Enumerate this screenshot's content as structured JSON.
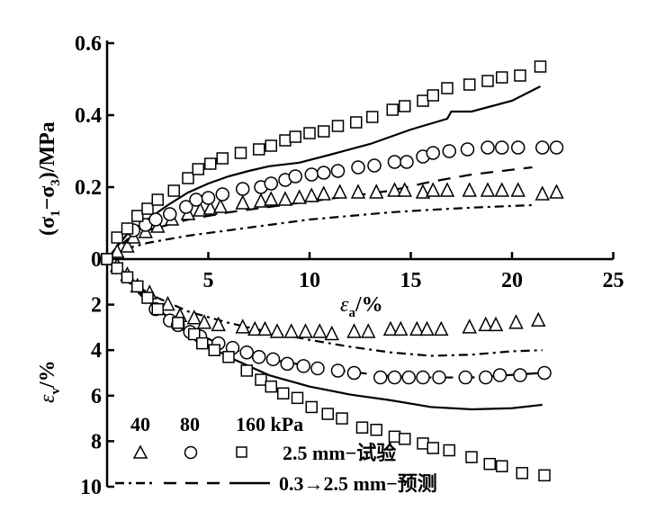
{
  "chart_data": {
    "type": "scatter",
    "x_axis": {
      "label_main": "ε",
      "label_sub": "a",
      "label_unit": "/%",
      "range": [
        0,
        25
      ],
      "ticks": [
        5,
        10,
        15,
        20,
        25
      ],
      "tick_labels": [
        "5",
        "10",
        "15",
        "20",
        "25"
      ]
    },
    "upper_y_axis": {
      "label": "(σ1−σ3)/MPa",
      "label_parts": [
        "(σ",
        "1",
        "−σ",
        "3",
        ")/MPa"
      ],
      "range": [
        0,
        0.6
      ],
      "ticks": [
        0,
        0.2,
        0.4,
        0.6
      ],
      "tick_labels": [
        "0",
        "0.2",
        "0.4",
        "0.6"
      ]
    },
    "lower_y_axis": {
      "label_main": "ε",
      "label_sub": "v",
      "label_unit": "/%",
      "range": [
        0,
        10
      ],
      "inverted": true,
      "ticks": [
        2,
        4,
        6,
        8,
        10
      ],
      "tick_labels": [
        "2",
        "4",
        "6",
        "8",
        "10"
      ]
    },
    "legend": {
      "pressures": [
        "40",
        "80",
        "160 kPa"
      ],
      "test_label": "2.5 mm−试验",
      "pred_label": "0.3→2.5 mm−预测",
      "placement": "bottom-left"
    },
    "upper_series": [
      {
        "name": "40 kPa test",
        "marker": "triangle",
        "points": [
          [
            0.5,
            0.02
          ],
          [
            1,
            0.035
          ],
          [
            1.3,
            0.06
          ],
          [
            1.9,
            0.075
          ],
          [
            2.5,
            0.09
          ],
          [
            3.2,
            0.11
          ],
          [
            4,
            0.125
          ],
          [
            4.6,
            0.135
          ],
          [
            5.1,
            0.14
          ],
          [
            5.6,
            0.145
          ],
          [
            6.7,
            0.155
          ],
          [
            7.6,
            0.16
          ],
          [
            8.1,
            0.165
          ],
          [
            8.8,
            0.165
          ],
          [
            9.5,
            0.17
          ],
          [
            10.1,
            0.175
          ],
          [
            10.7,
            0.18
          ],
          [
            11.5,
            0.185
          ],
          [
            12.4,
            0.185
          ],
          [
            13.3,
            0.185
          ],
          [
            14.2,
            0.19
          ],
          [
            14.7,
            0.19
          ],
          [
            15.6,
            0.185
          ],
          [
            16.1,
            0.19
          ],
          [
            16.8,
            0.19
          ],
          [
            17.9,
            0.19
          ],
          [
            18.8,
            0.19
          ],
          [
            19.5,
            0.19
          ],
          [
            20.3,
            0.19
          ],
          [
            21.5,
            0.18
          ],
          [
            22.2,
            0.185
          ]
        ]
      },
      {
        "name": "80 kPa test",
        "marker": "circle",
        "points": [
          [
            1.3,
            0.08
          ],
          [
            1.9,
            0.095
          ],
          [
            2.4,
            0.11
          ],
          [
            3.1,
            0.125
          ],
          [
            3.9,
            0.145
          ],
          [
            4.4,
            0.165
          ],
          [
            5,
            0.17
          ],
          [
            5.7,
            0.18
          ],
          [
            6.7,
            0.195
          ],
          [
            7.6,
            0.2
          ],
          [
            8.1,
            0.21
          ],
          [
            8.8,
            0.22
          ],
          [
            9.3,
            0.23
          ],
          [
            10.1,
            0.235
          ],
          [
            10.7,
            0.24
          ],
          [
            11.4,
            0.245
          ],
          [
            12.4,
            0.255
          ],
          [
            13.2,
            0.26
          ],
          [
            14.2,
            0.27
          ],
          [
            14.8,
            0.27
          ],
          [
            15.6,
            0.285
          ],
          [
            16.1,
            0.295
          ],
          [
            16.9,
            0.3
          ],
          [
            17.8,
            0.305
          ],
          [
            18.8,
            0.31
          ],
          [
            19.5,
            0.31
          ],
          [
            20.3,
            0.31
          ],
          [
            21.5,
            0.31
          ],
          [
            22.2,
            0.31
          ]
        ]
      },
      {
        "name": "160 kPa test",
        "marker": "square",
        "points": [
          [
            0,
            0
          ],
          [
            0.5,
            0.06
          ],
          [
            1,
            0.085
          ],
          [
            1.5,
            0.12
          ],
          [
            2,
            0.14
          ],
          [
            2.5,
            0.165
          ],
          [
            3.3,
            0.19
          ],
          [
            4,
            0.225
          ],
          [
            4.5,
            0.25
          ],
          [
            5.1,
            0.265
          ],
          [
            5.7,
            0.28
          ],
          [
            6.6,
            0.295
          ],
          [
            7.5,
            0.305
          ],
          [
            8.1,
            0.315
          ],
          [
            8.8,
            0.33
          ],
          [
            9.3,
            0.34
          ],
          [
            10,
            0.35
          ],
          [
            10.7,
            0.355
          ],
          [
            11.4,
            0.37
          ],
          [
            12.3,
            0.38
          ],
          [
            13.1,
            0.395
          ],
          [
            14.1,
            0.415
          ],
          [
            14.7,
            0.425
          ],
          [
            15.6,
            0.44
          ],
          [
            16.1,
            0.455
          ],
          [
            16.8,
            0.475
          ],
          [
            17.9,
            0.485
          ],
          [
            18.8,
            0.495
          ],
          [
            19.5,
            0.505
          ],
          [
            20.4,
            0.51
          ],
          [
            21.4,
            0.535
          ]
        ]
      },
      {
        "name": "40 kPa prediction",
        "line": "dashdot",
        "points": [
          [
            0,
            0
          ],
          [
            1,
            0.03
          ],
          [
            2,
            0.045
          ],
          [
            4,
            0.065
          ],
          [
            6,
            0.08
          ],
          [
            8,
            0.095
          ],
          [
            10,
            0.11
          ],
          [
            12,
            0.12
          ],
          [
            14,
            0.13
          ],
          [
            16,
            0.137
          ],
          [
            18,
            0.143
          ],
          [
            21,
            0.15
          ]
        ]
      },
      {
        "name": "80 kPa prediction",
        "line": "dashed",
        "points": [
          [
            0,
            0
          ],
          [
            1,
            0.055
          ],
          [
            2,
            0.08
          ],
          [
            4,
            0.11
          ],
          [
            6,
            0.13
          ],
          [
            8,
            0.145
          ],
          [
            10,
            0.16
          ],
          [
            12,
            0.175
          ],
          [
            14,
            0.19
          ],
          [
            16,
            0.215
          ],
          [
            18,
            0.235
          ],
          [
            21,
            0.255
          ]
        ]
      },
      {
        "name": "160 kPa prediction",
        "line": "solid",
        "points": [
          [
            0,
            0
          ],
          [
            1,
            0.07
          ],
          [
            2,
            0.11
          ],
          [
            3,
            0.15
          ],
          [
            4,
            0.185
          ],
          [
            5,
            0.21
          ],
          [
            6,
            0.23
          ],
          [
            7,
            0.245
          ],
          [
            8,
            0.258
          ],
          [
            9.5,
            0.268
          ],
          [
            11,
            0.29
          ],
          [
            13,
            0.32
          ],
          [
            15,
            0.36
          ],
          [
            16.8,
            0.39
          ],
          [
            17,
            0.41
          ],
          [
            18,
            0.41
          ],
          [
            20,
            0.44
          ],
          [
            21.4,
            0.48
          ]
        ]
      }
    ],
    "lower_series": [
      {
        "name": "40 kPa test",
        "marker": "triangle",
        "points": [
          [
            0.5,
            0.3
          ],
          [
            1,
            0.7
          ],
          [
            1.5,
            1.2
          ],
          [
            2.1,
            1.5
          ],
          [
            3,
            2.0
          ],
          [
            3.6,
            2.5
          ],
          [
            4.3,
            2.6
          ],
          [
            4.8,
            2.8
          ],
          [
            5.5,
            2.9
          ],
          [
            6.7,
            3.0
          ],
          [
            7.3,
            3.1
          ],
          [
            7.8,
            3.1
          ],
          [
            8.4,
            3.2
          ],
          [
            9.1,
            3.2
          ],
          [
            9.8,
            3.2
          ],
          [
            10.5,
            3.2
          ],
          [
            11.1,
            3.3
          ],
          [
            12.2,
            3.2
          ],
          [
            12.9,
            3.2
          ],
          [
            14,
            3.1
          ],
          [
            14.5,
            3.1
          ],
          [
            15.3,
            3.1
          ],
          [
            15.8,
            3.1
          ],
          [
            16.5,
            3.1
          ],
          [
            17.9,
            3.0
          ],
          [
            18.7,
            2.9
          ],
          [
            19.2,
            2.9
          ],
          [
            20.2,
            2.8
          ],
          [
            21.3,
            2.7
          ]
        ]
      },
      {
        "name": "80 kPa test",
        "marker": "circle",
        "points": [
          [
            2.4,
            2.2
          ],
          [
            3.1,
            2.7
          ],
          [
            3.5,
            2.9
          ],
          [
            4.1,
            3.2
          ],
          [
            4.6,
            3.4
          ],
          [
            5.5,
            3.7
          ],
          [
            6.2,
            3.9
          ],
          [
            6.9,
            4.1
          ],
          [
            7.5,
            4.3
          ],
          [
            8.2,
            4.4
          ],
          [
            8.9,
            4.6
          ],
          [
            9.7,
            4.7
          ],
          [
            10.4,
            4.8
          ],
          [
            11.4,
            4.9
          ],
          [
            12.2,
            5.0
          ],
          [
            13.5,
            5.2
          ],
          [
            14.2,
            5.2
          ],
          [
            14.9,
            5.2
          ],
          [
            15.6,
            5.2
          ],
          [
            16.4,
            5.2
          ],
          [
            17.7,
            5.2
          ],
          [
            18.7,
            5.2
          ],
          [
            19.4,
            5.1
          ],
          [
            20.4,
            5.1
          ],
          [
            21.6,
            5.0
          ]
        ]
      },
      {
        "name": "160 kPa test",
        "marker": "square",
        "points": [
          [
            0,
            0
          ],
          [
            0.5,
            0.4
          ],
          [
            1,
            0.8
          ],
          [
            1.5,
            1.2
          ],
          [
            2,
            1.7
          ],
          [
            2.5,
            2.2
          ],
          [
            3.5,
            2.8
          ],
          [
            4.3,
            3.3
          ],
          [
            4.7,
            3.7
          ],
          [
            5.3,
            4.0
          ],
          [
            6,
            4.3
          ],
          [
            6.9,
            4.9
          ],
          [
            7.6,
            5.3
          ],
          [
            8.1,
            5.6
          ],
          [
            8.7,
            5.9
          ],
          [
            9.4,
            6.1
          ],
          [
            10.1,
            6.5
          ],
          [
            10.9,
            6.8
          ],
          [
            11.6,
            7.0
          ],
          [
            12.6,
            7.4
          ],
          [
            13.3,
            7.5
          ],
          [
            14.2,
            7.8
          ],
          [
            14.7,
            7.9
          ],
          [
            15.6,
            8.1
          ],
          [
            16.1,
            8.3
          ],
          [
            16.9,
            8.4
          ],
          [
            18,
            8.7
          ],
          [
            18.9,
            9.0
          ],
          [
            19.5,
            9.1
          ],
          [
            20.5,
            9.4
          ],
          [
            21.6,
            9.5
          ]
        ]
      },
      {
        "name": "40 kPa prediction",
        "line": "dashdot",
        "points": [
          [
            0,
            0
          ],
          [
            2,
            1.5
          ],
          [
            4,
            2.3
          ],
          [
            6,
            2.8
          ],
          [
            8,
            3.2
          ],
          [
            10,
            3.55
          ],
          [
            12,
            3.85
          ],
          [
            14,
            4.1
          ],
          [
            16,
            4.25
          ],
          [
            18,
            4.2
          ],
          [
            20,
            4.05
          ],
          [
            21.5,
            4.0
          ]
        ]
      },
      {
        "name": "80 kPa prediction",
        "line": "dashed",
        "points": [
          [
            0,
            0
          ],
          [
            2,
            1.9
          ],
          [
            4,
            3.1
          ],
          [
            6,
            3.9
          ],
          [
            8,
            4.4
          ],
          [
            10,
            4.7
          ],
          [
            12,
            4.95
          ],
          [
            14,
            5.15
          ],
          [
            16,
            5.2
          ],
          [
            18,
            5.2
          ],
          [
            21.5,
            5.0
          ]
        ]
      },
      {
        "name": "160 kPa prediction",
        "line": "solid",
        "points": [
          [
            0,
            0
          ],
          [
            2,
            1.8
          ],
          [
            4,
            3.3
          ],
          [
            6,
            4.3
          ],
          [
            8,
            5.1
          ],
          [
            10,
            5.6
          ],
          [
            12,
            5.95
          ],
          [
            14,
            6.2
          ],
          [
            16,
            6.5
          ],
          [
            18,
            6.6
          ],
          [
            20,
            6.55
          ],
          [
            21.5,
            6.4
          ]
        ]
      }
    ]
  }
}
